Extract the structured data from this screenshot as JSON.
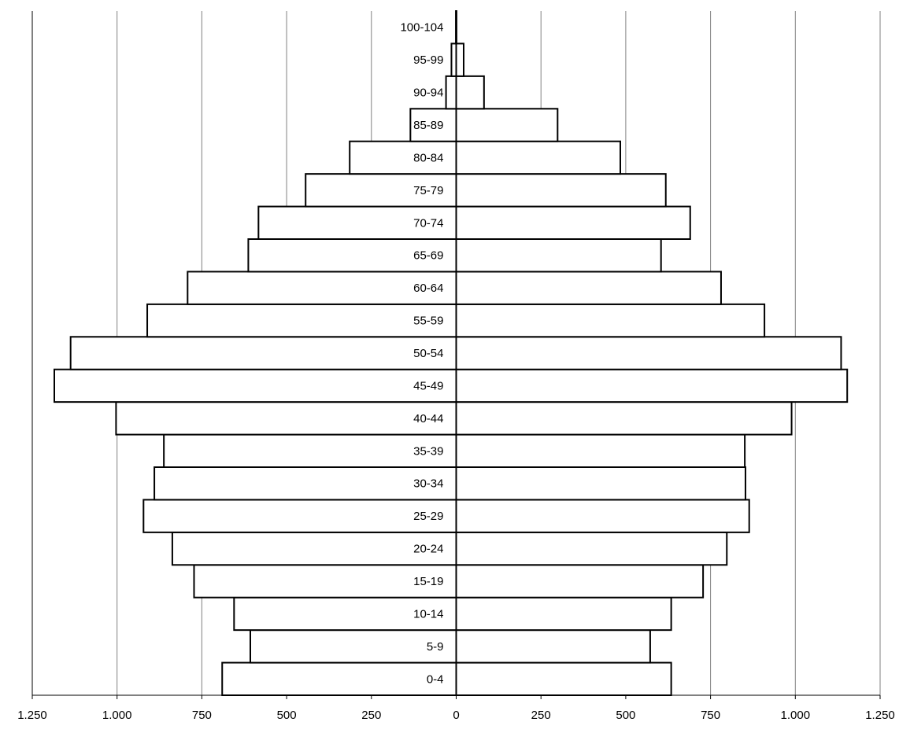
{
  "chart_data": {
    "type": "bar",
    "orientation": "horizontal",
    "layout": "population-pyramid",
    "title": "",
    "xlabel": "",
    "ylabel": "",
    "categories": [
      "0-4",
      "5-9",
      "10-14",
      "15-19",
      "20-24",
      "25-29",
      "30-34",
      "35-39",
      "40-44",
      "45-49",
      "50-54",
      "55-59",
      "60-64",
      "65-69",
      "70-74",
      "75-79",
      "80-84",
      "85-89",
      "90-94",
      "95-99",
      "100-104"
    ],
    "series": [
      {
        "side": "left",
        "values": [
          690,
          607,
          655,
          773,
          837,
          922,
          890,
          862,
          1003,
          1185,
          1137,
          911,
          792,
          613,
          583,
          444,
          314,
          135,
          30,
          14,
          1
        ]
      },
      {
        "side": "right",
        "values": [
          634,
          572,
          634,
          728,
          798,
          864,
          853,
          851,
          989,
          1153,
          1135,
          909,
          781,
          604,
          690,
          618,
          484,
          299,
          82,
          22,
          1
        ]
      }
    ],
    "xlim": [
      -1250,
      1250
    ],
    "x_ticks": [
      -1250,
      -1000,
      -750,
      -500,
      -250,
      0,
      250,
      500,
      750,
      1000,
      1250
    ],
    "x_tick_labels": [
      "1.250",
      "1.000",
      "750",
      "500",
      "250",
      "0",
      "250",
      "500",
      "750",
      "1.000",
      "1.250"
    ],
    "grid": true,
    "legend": "none",
    "colors": {
      "bar_fill": "#ffffff",
      "bar_stroke": "#000000",
      "grid": "#808080",
      "axis": "#000000"
    }
  }
}
